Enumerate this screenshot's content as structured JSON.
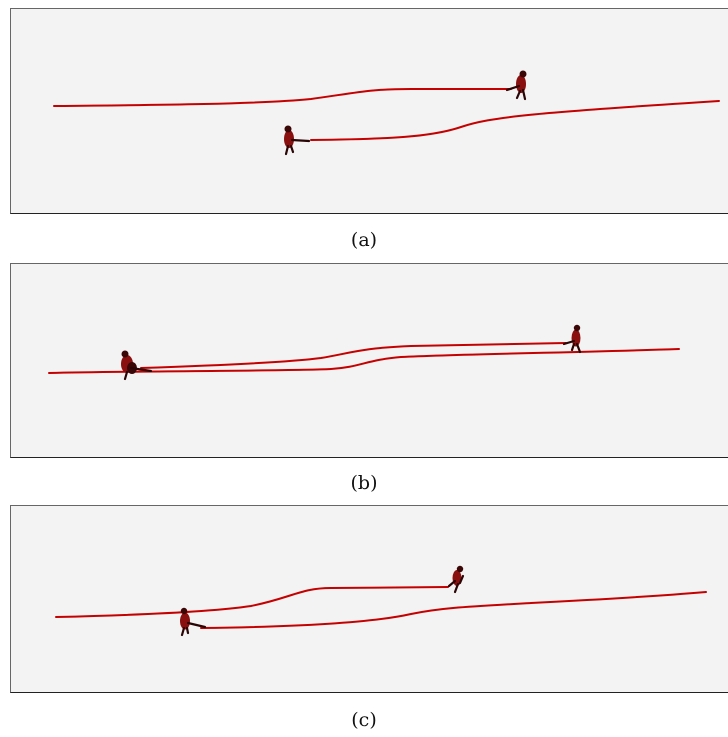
{
  "figure": {
    "panels": [
      {
        "id": "a",
        "caption": "(a)"
      },
      {
        "id": "b",
        "caption": "(b)"
      },
      {
        "id": "c",
        "caption": "(c)"
      }
    ]
  },
  "colors": {
    "trajectory": "#c40000",
    "figure_body": "#8a1010",
    "panel_background": "#f3f3f3"
  }
}
